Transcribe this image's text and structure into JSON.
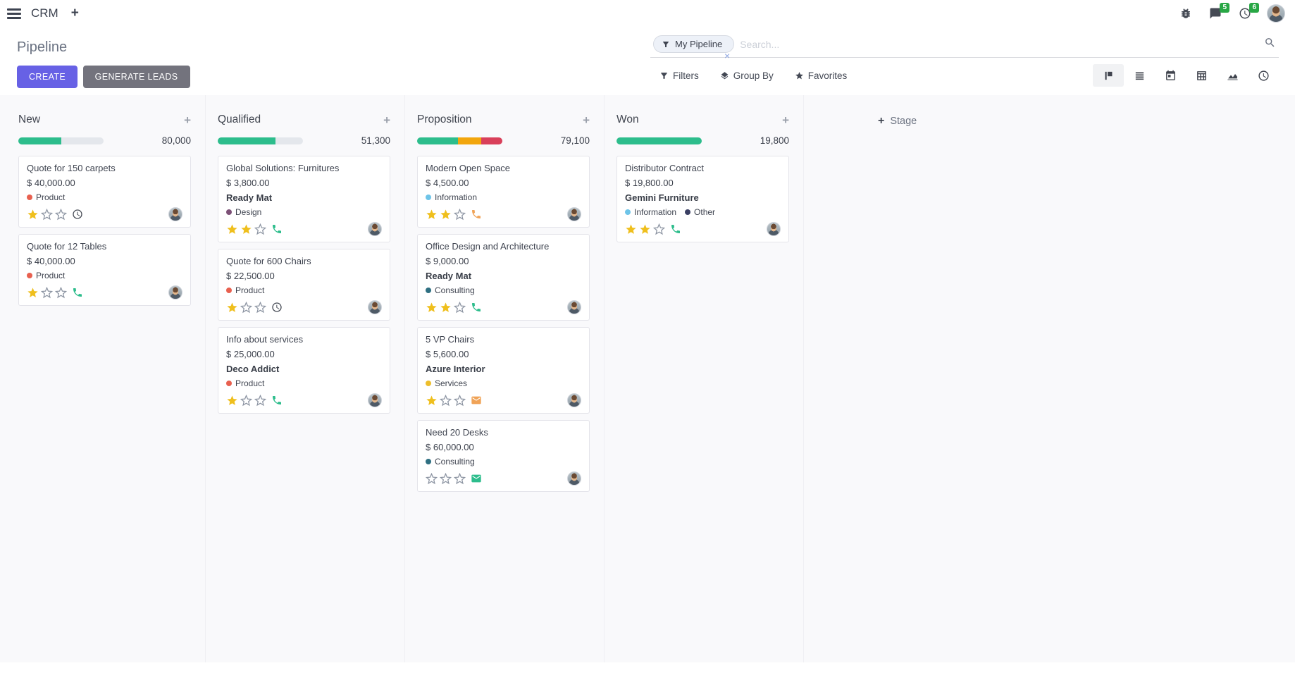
{
  "navbar": {
    "app_name": "CRM",
    "add_label": "+",
    "messages_badge": "5",
    "activities_badge": "6",
    "icons": [
      "hamburger-icon",
      "bug-icon",
      "messages-icon",
      "activity-clock-icon",
      "user-avatar"
    ]
  },
  "control_panel": {
    "title": "Pipeline",
    "create_label": "CREATE",
    "generate_leads_label": "GENERATE LEADS",
    "search": {
      "facet_label": "My Pipeline",
      "facet_icon": "filter-funnel-icon",
      "remove_label": "×",
      "placeholder": "Search..."
    },
    "filters_label": "Filters",
    "group_by_label": "Group By",
    "favorites_label": "Favorites",
    "view_switcher": [
      {
        "name": "kanban",
        "active": true
      },
      {
        "name": "list",
        "active": false
      },
      {
        "name": "calendar",
        "active": false
      },
      {
        "name": "pivot",
        "active": false
      },
      {
        "name": "graph",
        "active": false
      },
      {
        "name": "activity",
        "active": false
      }
    ]
  },
  "board": {
    "add_stage_plus": "+",
    "add_stage_label": "Stage",
    "columns": [
      {
        "name": "New",
        "add_label": "+",
        "total": "80,000",
        "progress": [
          {
            "color": "green",
            "pct": 50
          }
        ],
        "cards": [
          {
            "title": "Quote for 150 carpets",
            "amount": "$ 40,000.00",
            "tags": [
              {
                "label": "Product",
                "color": "red"
              }
            ],
            "stars": 1,
            "activity": {
              "icon": "clock",
              "color": "dark"
            }
          },
          {
            "title": "Quote for 12 Tables",
            "amount": "$ 40,000.00",
            "tags": [
              {
                "label": "Product",
                "color": "red"
              }
            ],
            "stars": 1,
            "activity": {
              "icon": "phone",
              "color": "green"
            }
          }
        ]
      },
      {
        "name": "Qualified",
        "add_label": "+",
        "total": "51,300",
        "progress": [
          {
            "color": "green",
            "pct": 68
          }
        ],
        "cards": [
          {
            "title": "Global Solutions: Furnitures",
            "amount": "$ 3,800.00",
            "partner": "Ready Mat",
            "tags": [
              {
                "label": "Design",
                "color": "purple"
              }
            ],
            "stars": 2,
            "activity": {
              "icon": "phone",
              "color": "green"
            }
          },
          {
            "title": "Quote for 600 Chairs",
            "amount": "$ 22,500.00",
            "tags": [
              {
                "label": "Product",
                "color": "red"
              }
            ],
            "stars": 1,
            "activity": {
              "icon": "clock",
              "color": "dark"
            }
          },
          {
            "title": "Info about services",
            "amount": "$ 25,000.00",
            "partner": "Deco Addict",
            "tags": [
              {
                "label": "Product",
                "color": "red"
              }
            ],
            "stars": 1,
            "activity": {
              "icon": "phone",
              "color": "green"
            }
          }
        ]
      },
      {
        "name": "Proposition",
        "add_label": "+",
        "total": "79,100",
        "progress": [
          {
            "color": "green",
            "pct": 48
          },
          {
            "color": "orange",
            "pct": 27
          },
          {
            "color": "red",
            "pct": 25
          }
        ],
        "cards": [
          {
            "title": "Modern Open Space",
            "amount": "$ 4,500.00",
            "tags": [
              {
                "label": "Information",
                "color": "lightblue"
              }
            ],
            "stars": 2,
            "activity": {
              "icon": "phone",
              "color": "orange"
            }
          },
          {
            "title": "Office Design and Architecture",
            "amount": "$ 9,000.00",
            "partner": "Ready Mat",
            "tags": [
              {
                "label": "Consulting",
                "color": "teal"
              }
            ],
            "stars": 2,
            "activity": {
              "icon": "phone",
              "color": "green"
            }
          },
          {
            "title": "5 VP Chairs",
            "amount": "$ 5,600.00",
            "partner": "Azure Interior",
            "tags": [
              {
                "label": "Services",
                "color": "yellow"
              }
            ],
            "stars": 1,
            "activity": {
              "icon": "mail",
              "color": "orange"
            }
          },
          {
            "title": "Need 20 Desks",
            "amount": "$ 60,000.00",
            "tags": [
              {
                "label": "Consulting",
                "color": "teal"
              }
            ],
            "stars": 0,
            "activity": {
              "icon": "mail",
              "color": "green"
            }
          }
        ]
      },
      {
        "name": "Won",
        "add_label": "+",
        "total": "19,800",
        "progress": [
          {
            "color": "green",
            "pct": 100
          }
        ],
        "cards": [
          {
            "title": "Distributor Contract",
            "amount": "$ 19,800.00",
            "partner": "Gemini Furniture",
            "tags": [
              {
                "label": "Information",
                "color": "lightblue"
              },
              {
                "label": "Other",
                "color": "navy"
              }
            ],
            "stars": 2,
            "activity": {
              "icon": "phone",
              "color": "green"
            }
          }
        ]
      }
    ]
  },
  "colors": {
    "green": "#2dbd8c",
    "orange": "#f2a60d",
    "red": "#d9405a",
    "tag_red": "#e8604f",
    "tag_purple": "#7d5177",
    "tag_lightblue": "#6ec4e8",
    "tag_teal": "#2e6f81",
    "tag_yellow": "#edbe2b",
    "tag_navy": "#3a3f63",
    "icon_dark": "#454a54",
    "icon_green": "#2dbd8c",
    "icon_orange": "#f0a357",
    "star_gold": "#efbf1d",
    "star_empty": "#8c94a2",
    "badge_green": "#28a745",
    "primary_button": "#6761e5",
    "secondary_button": "#73737d"
  }
}
